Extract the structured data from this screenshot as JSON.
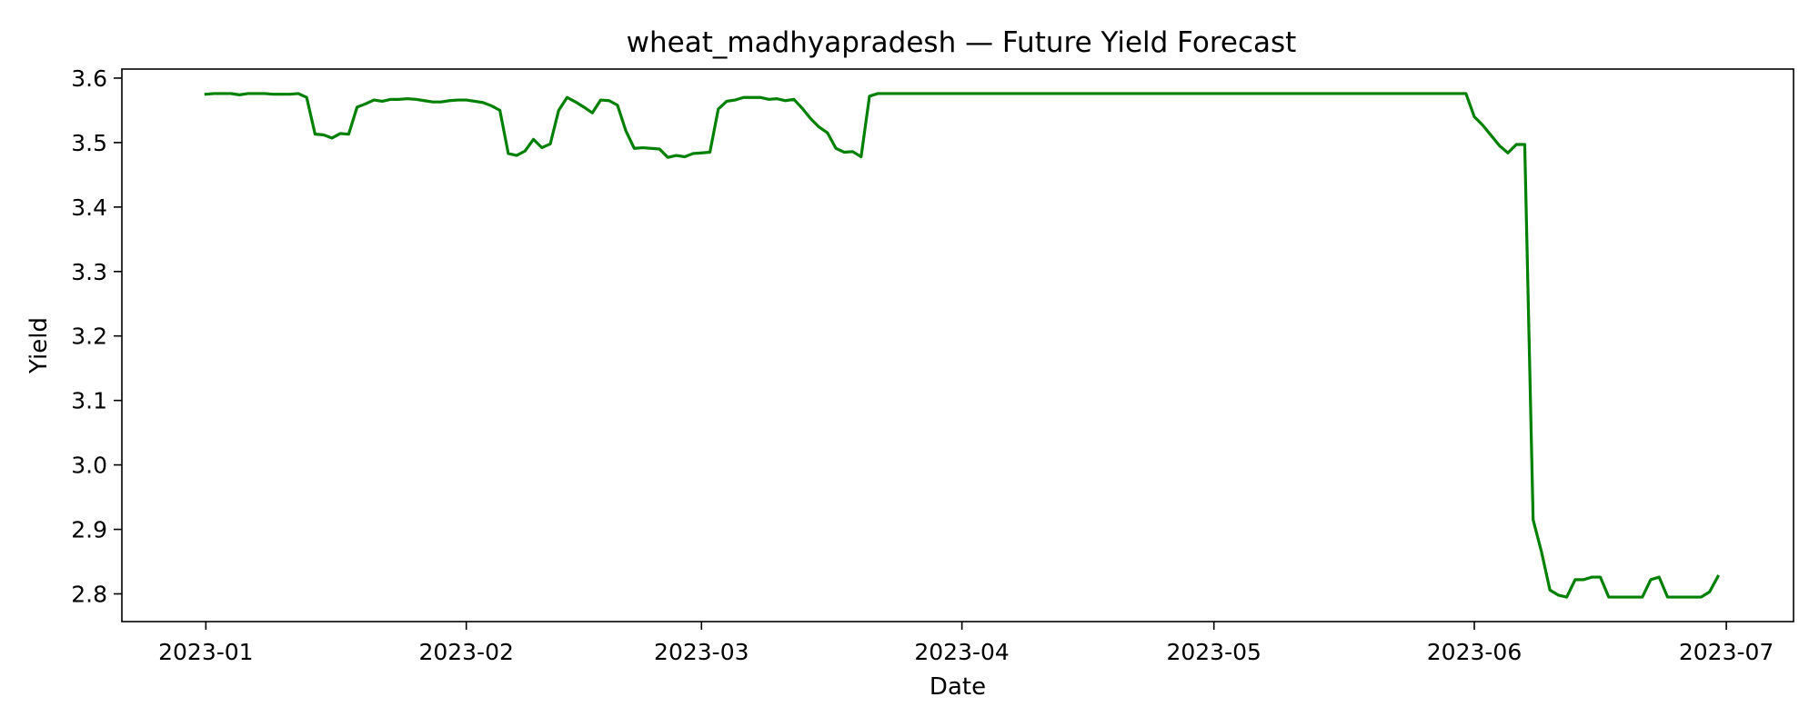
{
  "chart_data": {
    "type": "line",
    "title": "wheat_madhyapradesh — Future Yield Forecast",
    "xlabel": "Date",
    "ylabel": "Yield",
    "xlim": [
      "2022-12-22",
      "2023-07-09"
    ],
    "ylim": [
      2.757,
      3.614
    ],
    "grid": false,
    "legend": "none",
    "x_ticks": [
      "2023-01-01",
      "2023-02-01",
      "2023-03-01",
      "2023-04-01",
      "2023-05-01",
      "2023-06-01",
      "2023-07-01"
    ],
    "x_tick_labels": [
      "2023-01",
      "2023-02",
      "2023-03",
      "2023-04",
      "2023-05",
      "2023-06",
      "2023-07"
    ],
    "y_ticks": [
      2.8,
      2.9,
      3.0,
      3.1,
      3.2,
      3.3,
      3.4,
      3.5,
      3.6
    ],
    "y_tick_labels": [
      "2.8",
      "2.9",
      "3.0",
      "3.1",
      "3.2",
      "3.3",
      "3.4",
      "3.5",
      "3.6"
    ],
    "series": [
      {
        "color": "#008000",
        "points": [
          [
            "2023-01-01",
            3.575
          ],
          [
            "2023-01-02",
            3.576
          ],
          [
            "2023-01-03",
            3.576
          ],
          [
            "2023-01-04",
            3.576
          ],
          [
            "2023-01-05",
            3.574
          ],
          [
            "2023-01-06",
            3.576
          ],
          [
            "2023-01-07",
            3.576
          ],
          [
            "2023-01-08",
            3.576
          ],
          [
            "2023-01-09",
            3.575
          ],
          [
            "2023-01-10",
            3.575
          ],
          [
            "2023-01-11",
            3.575
          ],
          [
            "2023-01-12",
            3.576
          ],
          [
            "2023-01-13",
            3.57
          ],
          [
            "2023-01-14",
            3.513
          ],
          [
            "2023-01-15",
            3.512
          ],
          [
            "2023-01-16",
            3.507
          ],
          [
            "2023-01-17",
            3.514
          ],
          [
            "2023-01-18",
            3.513
          ],
          [
            "2023-01-19",
            3.555
          ],
          [
            "2023-01-20",
            3.56
          ],
          [
            "2023-01-21",
            3.566
          ],
          [
            "2023-01-22",
            3.564
          ],
          [
            "2023-01-23",
            3.567
          ],
          [
            "2023-01-24",
            3.567
          ],
          [
            "2023-01-25",
            3.568
          ],
          [
            "2023-01-26",
            3.567
          ],
          [
            "2023-01-27",
            3.565
          ],
          [
            "2023-01-28",
            3.563
          ],
          [
            "2023-01-29",
            3.563
          ],
          [
            "2023-01-30",
            3.565
          ],
          [
            "2023-01-31",
            3.566
          ],
          [
            "2023-02-01",
            3.566
          ],
          [
            "2023-02-02",
            3.564
          ],
          [
            "2023-02-03",
            3.562
          ],
          [
            "2023-02-04",
            3.557
          ],
          [
            "2023-02-05",
            3.55
          ],
          [
            "2023-02-06",
            3.483
          ],
          [
            "2023-02-07",
            3.48
          ],
          [
            "2023-02-08",
            3.487
          ],
          [
            "2023-02-09",
            3.505
          ],
          [
            "2023-02-10",
            3.492
          ],
          [
            "2023-02-11",
            3.498
          ],
          [
            "2023-02-12",
            3.55
          ],
          [
            "2023-02-13",
            3.57
          ],
          [
            "2023-02-14",
            3.563
          ],
          [
            "2023-02-15",
            3.555
          ],
          [
            "2023-02-16",
            3.546
          ],
          [
            "2023-02-17",
            3.566
          ],
          [
            "2023-02-18",
            3.565
          ],
          [
            "2023-02-19",
            3.558
          ],
          [
            "2023-02-20",
            3.518
          ],
          [
            "2023-02-21",
            3.491
          ],
          [
            "2023-02-22",
            3.492
          ],
          [
            "2023-02-23",
            3.491
          ],
          [
            "2023-02-24",
            3.49
          ],
          [
            "2023-02-25",
            3.477
          ],
          [
            "2023-02-26",
            3.48
          ],
          [
            "2023-02-27",
            3.478
          ],
          [
            "2023-02-28",
            3.483
          ],
          [
            "2023-03-01",
            3.484
          ],
          [
            "2023-03-02",
            3.485
          ],
          [
            "2023-03-03",
            3.552
          ],
          [
            "2023-03-04",
            3.564
          ],
          [
            "2023-03-05",
            3.566
          ],
          [
            "2023-03-06",
            3.57
          ],
          [
            "2023-03-07",
            3.57
          ],
          [
            "2023-03-08",
            3.57
          ],
          [
            "2023-03-09",
            3.567
          ],
          [
            "2023-03-10",
            3.568
          ],
          [
            "2023-03-11",
            3.565
          ],
          [
            "2023-03-12",
            3.567
          ],
          [
            "2023-03-13",
            3.553
          ],
          [
            "2023-03-14",
            3.537
          ],
          [
            "2023-03-15",
            3.524
          ],
          [
            "2023-03-16",
            3.515
          ],
          [
            "2023-03-17",
            3.491
          ],
          [
            "2023-03-18",
            3.485
          ],
          [
            "2023-03-19",
            3.486
          ],
          [
            "2023-03-20",
            3.478
          ],
          [
            "2023-03-21",
            3.572
          ],
          [
            "2023-03-22",
            3.576
          ],
          [
            "2023-03-23",
            3.576
          ],
          [
            "2023-04-01",
            3.576
          ],
          [
            "2023-04-15",
            3.576
          ],
          [
            "2023-05-01",
            3.576
          ],
          [
            "2023-05-15",
            3.576
          ],
          [
            "2023-05-31",
            3.576
          ],
          [
            "2023-06-01",
            3.54
          ],
          [
            "2023-06-02",
            3.527
          ],
          [
            "2023-06-03",
            3.511
          ],
          [
            "2023-06-04",
            3.495
          ],
          [
            "2023-06-05",
            3.484
          ],
          [
            "2023-06-06",
            3.497
          ],
          [
            "2023-06-07",
            3.497
          ],
          [
            "2023-06-08",
            2.915
          ],
          [
            "2023-06-09",
            2.865
          ],
          [
            "2023-06-10",
            2.806
          ],
          [
            "2023-06-11",
            2.798
          ],
          [
            "2023-06-12",
            2.795
          ],
          [
            "2023-06-13",
            2.822
          ],
          [
            "2023-06-14",
            2.822
          ],
          [
            "2023-06-15",
            2.826
          ],
          [
            "2023-06-16",
            2.826
          ],
          [
            "2023-06-17",
            2.795
          ],
          [
            "2023-06-18",
            2.795
          ],
          [
            "2023-06-19",
            2.795
          ],
          [
            "2023-06-20",
            2.795
          ],
          [
            "2023-06-21",
            2.795
          ],
          [
            "2023-06-22",
            2.822
          ],
          [
            "2023-06-23",
            2.826
          ],
          [
            "2023-06-24",
            2.795
          ],
          [
            "2023-06-25",
            2.795
          ],
          [
            "2023-06-26",
            2.795
          ],
          [
            "2023-06-27",
            2.795
          ],
          [
            "2023-06-28",
            2.795
          ],
          [
            "2023-06-29",
            2.803
          ],
          [
            "2023-06-30",
            2.827
          ]
        ]
      }
    ]
  }
}
